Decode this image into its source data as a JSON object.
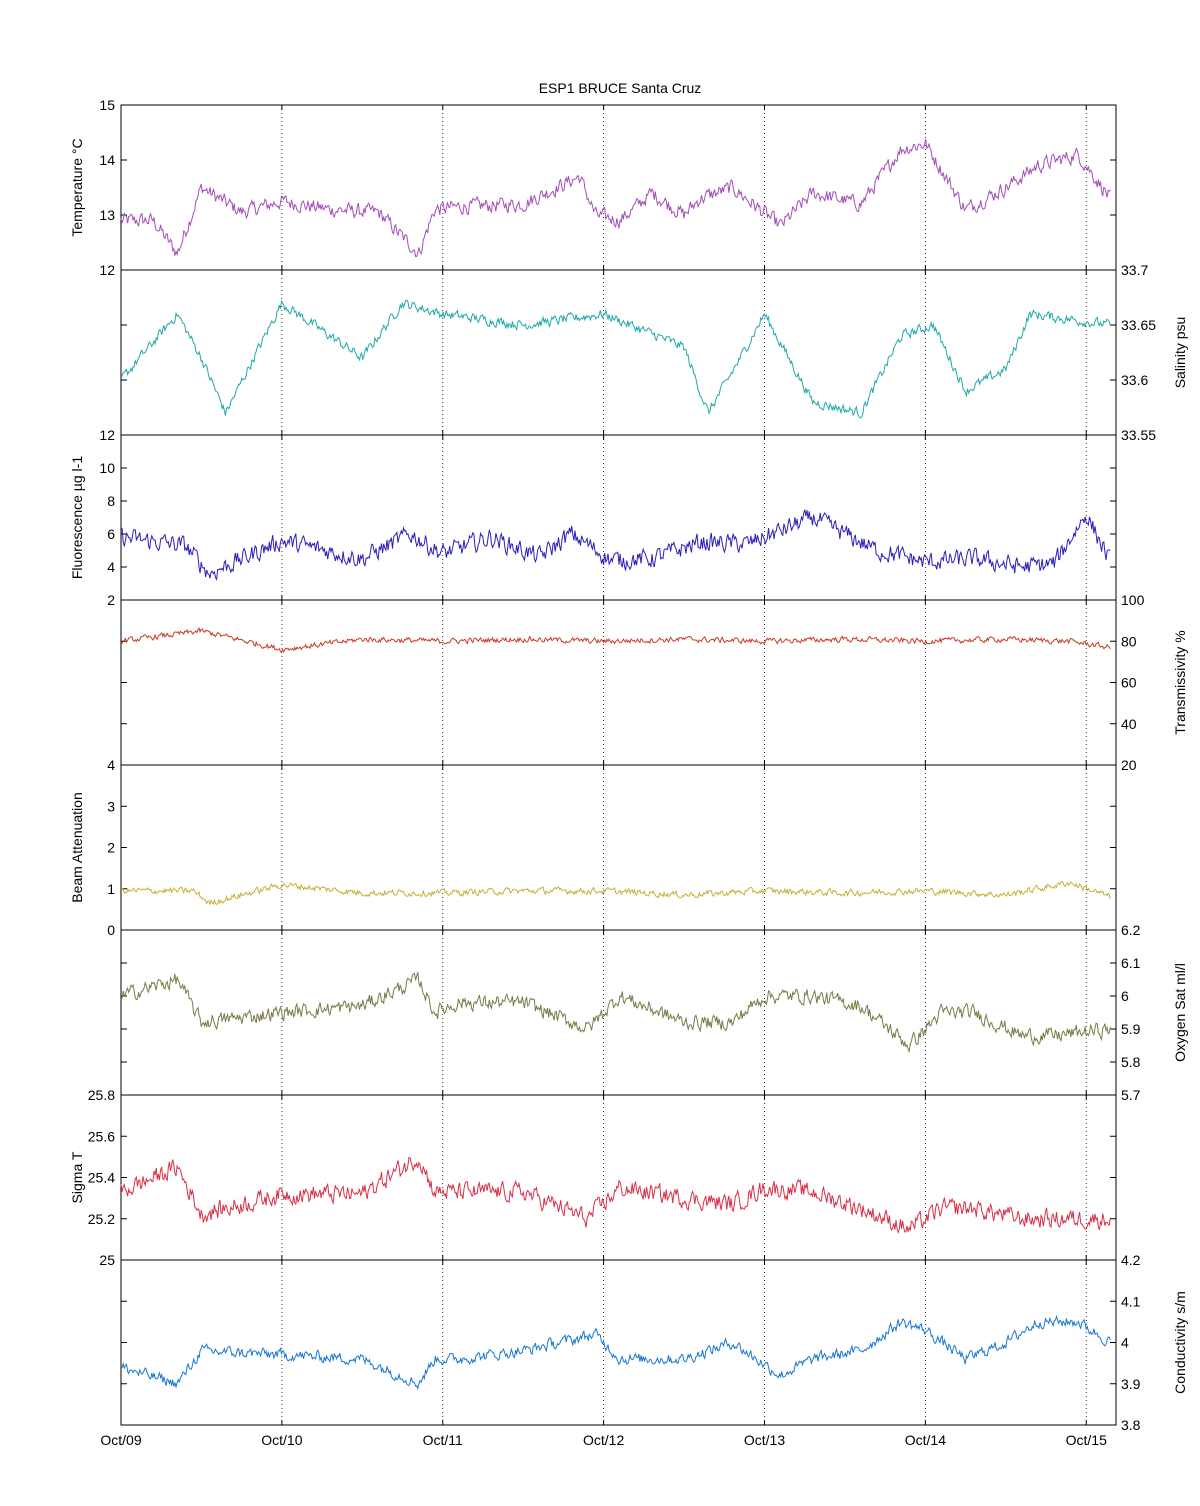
{
  "chart_data": {
    "type": "line",
    "title": "ESP1 BRUCE Santa Cruz",
    "x_ticks": [
      "Oct/09",
      "Oct/10",
      "Oct/11",
      "Oct/12",
      "Oct/13",
      "Oct/14",
      "Oct/15"
    ],
    "x_range": [
      "Oct/09 00:00",
      "Oct/15 04:00"
    ],
    "grid": "vertical dotted at day ticks",
    "panels": [
      {
        "name": "Temperature",
        "ylabel": "Temperature °C",
        "axis_side": "left",
        "color": "#a34fb8",
        "ylim": [
          12,
          15
        ],
        "yticks": [
          12,
          13,
          14,
          15
        ],
        "ytick_labels": [
          "12",
          "13",
          "14",
          "15"
        ],
        "x": [
          0,
          0.2,
          0.35,
          0.5,
          0.75,
          1,
          1.3,
          1.6,
          1.85,
          1.95,
          2.1,
          2.5,
          2.85,
          2.95,
          3.1,
          3.3,
          3.5,
          3.6,
          3.8,
          4.1,
          4.3,
          4.6,
          4.85,
          5.0,
          5.25,
          5.5,
          5.7,
          5.95,
          6.15
        ],
        "y": [
          12.9,
          12.9,
          12.3,
          13.5,
          13.05,
          13.25,
          13.1,
          13.05,
          12.3,
          13.1,
          13.15,
          13.2,
          13.7,
          13.0,
          12.9,
          13.4,
          13.0,
          13.3,
          13.5,
          12.8,
          13.4,
          13.2,
          14.2,
          14.3,
          13.1,
          13.5,
          13.9,
          14.1,
          13.3
        ],
        "noise": 0.12
      },
      {
        "name": "Salinity",
        "ylabel": "Salinity psu",
        "axis_side": "right",
        "color": "#22a8a8",
        "ylim": [
          33.55,
          33.7
        ],
        "yticks": [
          33.55,
          33.6,
          33.65,
          33.7
        ],
        "ytick_labels": [
          "33.55",
          "33.6",
          "33.65",
          "33.7"
        ],
        "x": [
          0,
          0.35,
          0.5,
          0.65,
          1,
          1.5,
          1.75,
          2.0,
          2.5,
          3.0,
          3.5,
          3.65,
          3.85,
          4.0,
          4.3,
          4.6,
          4.85,
          5.05,
          5.25,
          5.5,
          5.65,
          6.15
        ],
        "y": [
          33.6,
          33.66,
          33.62,
          33.57,
          33.67,
          33.62,
          33.67,
          33.66,
          33.65,
          33.66,
          33.63,
          33.57,
          33.62,
          33.66,
          33.58,
          33.57,
          33.64,
          33.65,
          33.59,
          33.61,
          33.66,
          33.65
        ],
        "noise": 0.004
      },
      {
        "name": "Fluorescence",
        "ylabel": "Fluorescence µg l-1",
        "axis_side": "left",
        "color": "#2b1fb8",
        "ylim": [
          2,
          12
        ],
        "yticks": [
          2,
          4,
          6,
          8,
          10,
          12
        ],
        "ytick_labels": [
          "2",
          "4",
          "6",
          "8",
          "10",
          "12"
        ],
        "x": [
          0,
          0.4,
          0.55,
          1.0,
          1.5,
          1.8,
          2.0,
          2.3,
          2.6,
          2.8,
          3.05,
          3.3,
          3.6,
          3.9,
          4.3,
          4.7,
          5.0,
          5.3,
          5.6,
          5.8,
          6.0,
          6.15
        ],
        "y": [
          5.8,
          5.3,
          3.6,
          5.6,
          4.5,
          6.0,
          4.8,
          5.8,
          4.6,
          6.0,
          4.4,
          4.5,
          5.5,
          5.4,
          7.0,
          5.0,
          4.3,
          4.5,
          4.0,
          4.2,
          7.2,
          4.3
        ],
        "noise": 0.5
      },
      {
        "name": "Transmissivity",
        "ylabel": "Transmissivity %",
        "axis_side": "right",
        "color": "#c83c24",
        "ylim": [
          20,
          100
        ],
        "yticks": [
          20,
          40,
          60,
          80,
          100
        ],
        "ytick_labels": [
          "20",
          "40",
          "60",
          "80",
          "100"
        ],
        "x": [
          0,
          0.5,
          1.0,
          1.5,
          2.0,
          2.5,
          3.0,
          3.5,
          4.0,
          4.5,
          5.0,
          5.5,
          5.9,
          6.15
        ],
        "y": [
          80,
          85,
          76,
          81,
          80,
          81,
          80,
          81,
          80,
          81,
          80,
          81,
          80,
          77
        ],
        "noise": 1.2
      },
      {
        "name": "Beam Attenuation",
        "ylabel": "Beam Attenuation",
        "axis_side": "left",
        "color": "#c8b038",
        "ylim": [
          0,
          4
        ],
        "yticks": [
          0,
          1,
          2,
          3,
          4
        ],
        "ytick_labels": [
          "0",
          "1",
          "2",
          "3",
          "4"
        ],
        "x": [
          0,
          0.45,
          0.55,
          1.0,
          1.5,
          2.0,
          2.5,
          3.0,
          3.5,
          4.0,
          4.5,
          5.0,
          5.5,
          5.9,
          6.15
        ],
        "y": [
          0.95,
          0.95,
          0.65,
          1.1,
          0.9,
          0.9,
          0.95,
          0.95,
          0.85,
          0.95,
          0.9,
          0.95,
          0.85,
          1.15,
          0.8
        ],
        "noise": 0.07
      },
      {
        "name": "Oxygen Sat",
        "ylabel": "Oxygen Sat ml/l",
        "axis_side": "right",
        "color": "#7a7a48",
        "ylim": [
          5.7,
          6.2
        ],
        "yticks": [
          5.7,
          5.8,
          5.9,
          6.0,
          6.1,
          6.2
        ],
        "ytick_labels": [
          "5.7",
          "5.8",
          "5.9",
          "6",
          "6.1",
          "6.2"
        ],
        "x": [
          0,
          0.35,
          0.5,
          1.0,
          1.5,
          1.85,
          1.95,
          2.1,
          2.5,
          2.9,
          3.1,
          3.5,
          3.8,
          4.0,
          4.3,
          4.6,
          4.9,
          5.1,
          5.3,
          5.6,
          5.8,
          6.15
        ],
        "y": [
          6.0,
          6.05,
          5.92,
          5.95,
          5.97,
          6.05,
          5.95,
          5.98,
          5.98,
          5.9,
          6.0,
          5.92,
          5.92,
          6.0,
          6.0,
          5.97,
          5.85,
          5.95,
          5.95,
          5.88,
          5.88,
          5.9
        ],
        "noise": 0.02
      },
      {
        "name": "Sigma T",
        "ylabel": "Sigma T",
        "axis_side": "left",
        "color": "#d83048",
        "ylim": [
          25,
          25.8
        ],
        "yticks": [
          25,
          25.2,
          25.4,
          25.6,
          25.8
        ],
        "ytick_labels": [
          "25",
          "25.2",
          "25.4",
          "25.6",
          "25.8"
        ],
        "x": [
          0,
          0.35,
          0.5,
          1.0,
          1.5,
          1.85,
          1.95,
          2.1,
          2.5,
          2.9,
          3.1,
          3.5,
          3.8,
          4.0,
          4.3,
          4.6,
          4.9,
          5.1,
          5.3,
          5.6,
          5.8,
          6.15
        ],
        "y": [
          25.33,
          25.45,
          25.22,
          25.32,
          25.32,
          25.5,
          25.33,
          25.33,
          25.33,
          25.2,
          25.35,
          25.3,
          25.27,
          25.35,
          25.33,
          25.25,
          25.15,
          25.25,
          25.25,
          25.2,
          25.2,
          25.2
        ],
        "noise": 0.04
      },
      {
        "name": "Conductivity",
        "ylabel": "Conductivity s/m",
        "axis_side": "right",
        "color": "#1a78d0",
        "ylim": [
          3.8,
          4.2
        ],
        "yticks": [
          3.8,
          3.9,
          4.0,
          4.1,
          4.2
        ],
        "ytick_labels": [
          "3.8",
          "3.9",
          "4",
          "4.1",
          "4.2"
        ],
        "x": [
          0,
          0.35,
          0.5,
          1.0,
          1.5,
          1.85,
          1.95,
          2.1,
          2.5,
          2.95,
          3.1,
          3.5,
          3.8,
          4.1,
          4.3,
          4.6,
          4.85,
          5.0,
          5.25,
          5.5,
          5.7,
          5.95,
          6.15
        ],
        "y": [
          3.94,
          3.9,
          3.98,
          3.97,
          3.96,
          3.9,
          3.96,
          3.96,
          3.98,
          4.02,
          3.96,
          3.96,
          4.0,
          3.92,
          3.96,
          3.98,
          4.05,
          4.03,
          3.96,
          4.0,
          4.05,
          4.05,
          4.0
        ],
        "noise": 0.012
      }
    ]
  }
}
